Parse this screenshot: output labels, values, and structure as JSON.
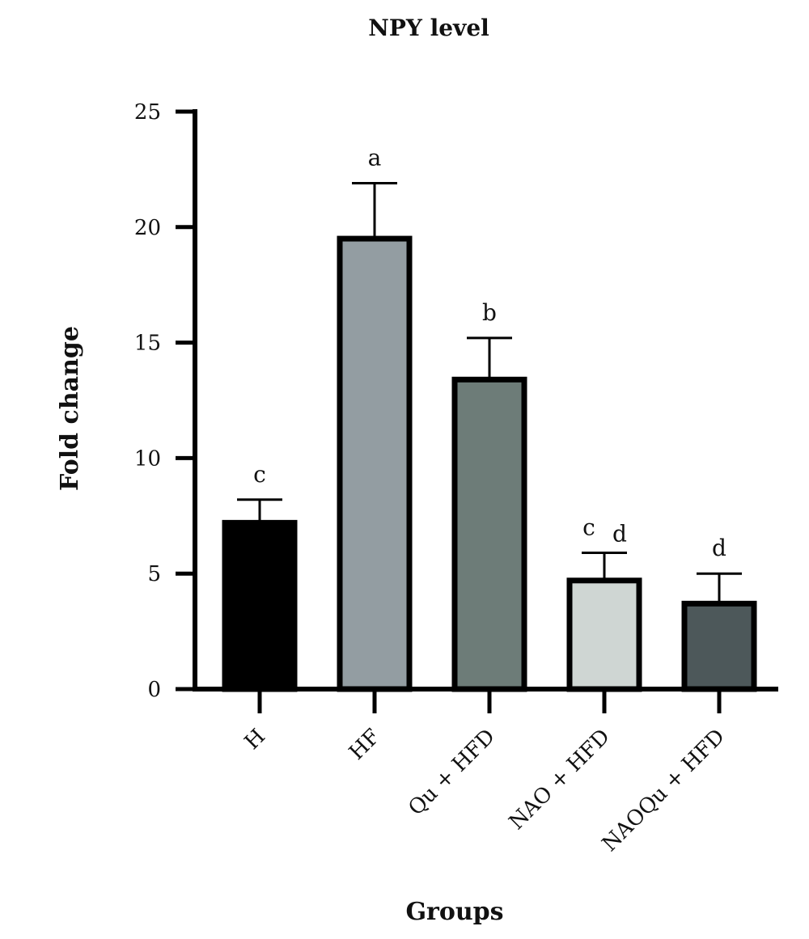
{
  "chart_data": {
    "type": "bar",
    "title": "NPY level",
    "xlabel": "Groups",
    "ylabel": "Fold change",
    "ylim": [
      0,
      25
    ],
    "yticks": [
      0,
      5,
      10,
      15,
      20,
      25
    ],
    "grid": false,
    "legend": "none",
    "categories": [
      "H",
      "HF",
      "Qu + HFD",
      "NAO + HFD",
      "NAOQu + HFD"
    ],
    "values": [
      7.2,
      19.5,
      13.4,
      4.7,
      3.7
    ],
    "error_upper": [
      8.2,
      21.9,
      15.2,
      5.9,
      5.0
    ],
    "significance": [
      "c",
      "a",
      "b",
      "c d",
      "d"
    ],
    "colors": [
      "#000000",
      "#939da2",
      "#6d7c78",
      "#cfd6d3",
      "#4d585a"
    ],
    "bar_outline": "#000000"
  }
}
